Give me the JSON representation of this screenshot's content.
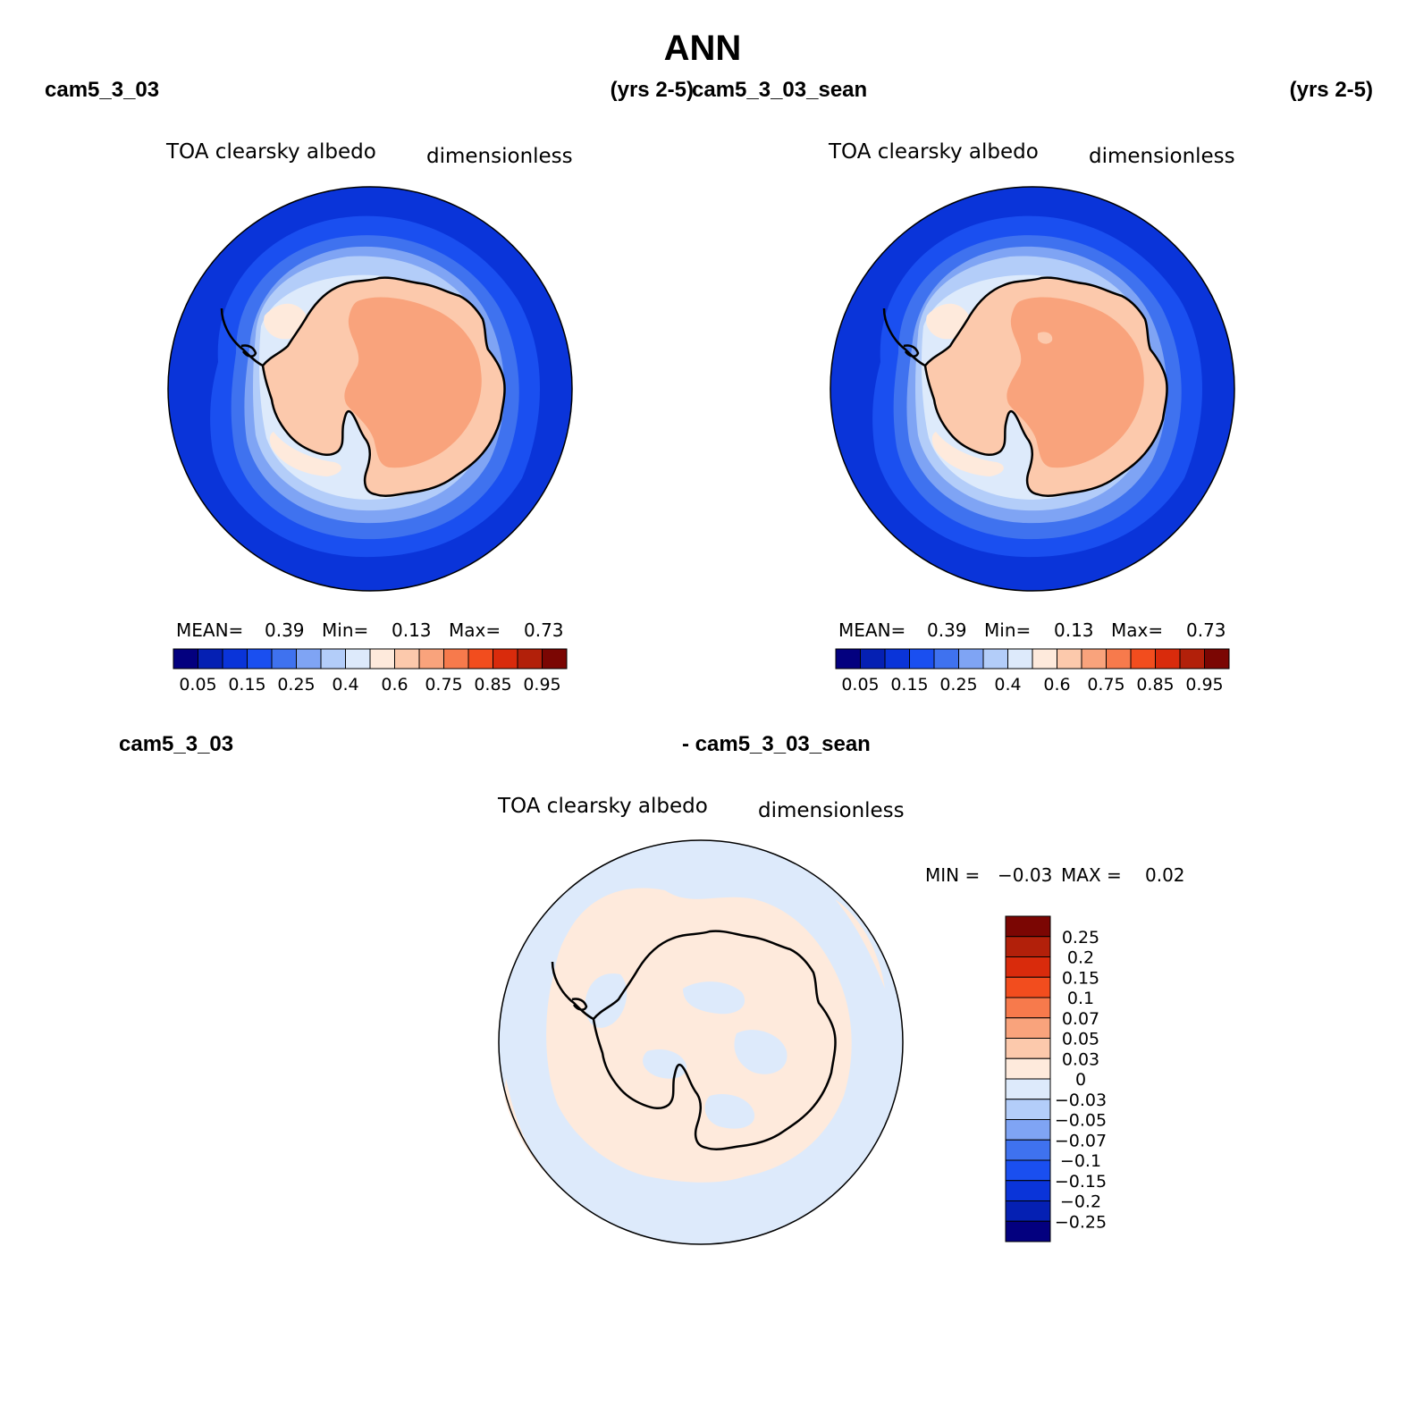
{
  "figure": {
    "title": "ANN",
    "panels": [
      {
        "case_label": "cam5_3_03",
        "years_label": "(yrs 2-5)",
        "variable_label": "TOA clearsky albedo",
        "units_label": "dimensionless",
        "stats": {
          "mean_label": "MEAN=",
          "mean": "0.39",
          "min_label": "Min=",
          "min": "0.13",
          "max_label": "Max=",
          "max": "0.73"
        }
      },
      {
        "case_label": "cam5_3_03_sean",
        "years_label": "(yrs 2-5)",
        "variable_label": "TOA clearsky albedo",
        "units_label": "dimensionless",
        "stats": {
          "mean_label": "MEAN=",
          "mean": "0.39",
          "min_label": "Min=",
          "min": "0.13",
          "max_label": "Max=",
          "max": "0.73"
        }
      }
    ],
    "diff_panel": {
      "left_label": "cam5_3_03",
      "right_label": "- cam5_3_03_sean",
      "variable_label": "TOA clearsky albedo",
      "units_label": "dimensionless",
      "stats": {
        "min_label": "MIN =",
        "min": "−0.03",
        "max_label": "MAX =",
        "max": "0.02"
      }
    },
    "abs_colorbar": {
      "colors": [
        "#03007f",
        "#0520b3",
        "#0a34d9",
        "#1a4ff0",
        "#3f72ef",
        "#7fa4f4",
        "#b3cdf9",
        "#ddeafb",
        "#feeadc",
        "#fcc9ac",
        "#f9a37c",
        "#f77a4c",
        "#f24d1e",
        "#d92b0c",
        "#b2200a",
        "#7b0603"
      ],
      "tick_labels": [
        "0.05",
        "0.15",
        "0.25",
        "0.4",
        "0.6",
        "0.75",
        "0.85",
        "0.95"
      ]
    },
    "diff_colorbar": {
      "colors": [
        "#03007f",
        "#0520b3",
        "#0a34d9",
        "#1a4ff0",
        "#3f72ef",
        "#7fa4f4",
        "#b3cdf9",
        "#ddeafb",
        "#feeadc",
        "#fcc9ac",
        "#f9a37c",
        "#f77a4c",
        "#f24d1e",
        "#d92b0c",
        "#b2200a",
        "#7b0603"
      ],
      "tick_labels": [
        "0.25",
        "0.2",
        "0.15",
        "0.1",
        "0.07",
        "0.05",
        "0.03",
        "0",
        "−0.03",
        "−0.05",
        "−0.07",
        "−0.1",
        "−0.15",
        "−0.2",
        "−0.25"
      ]
    }
  }
}
